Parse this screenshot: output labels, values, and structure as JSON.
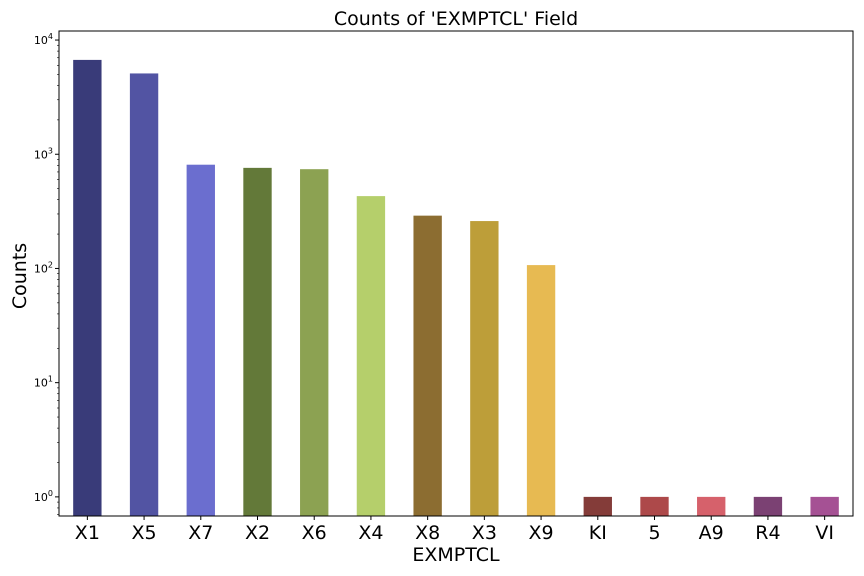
{
  "chart_data": {
    "type": "bar",
    "title": "Counts of 'EXMPTCL' Field",
    "xlabel": "EXMPTCL",
    "ylabel": "Counts",
    "yscale": "log",
    "ylim": [
      0.68,
      12000
    ],
    "yticks": [
      {
        "base": "10",
        "exp": "0",
        "value": 1
      },
      {
        "base": "10",
        "exp": "1",
        "value": 10
      },
      {
        "base": "10",
        "exp": "2",
        "value": 100
      },
      {
        "base": "10",
        "exp": "3",
        "value": 1000
      },
      {
        "base": "10",
        "exp": "4",
        "value": 10000
      }
    ],
    "categories": [
      "X1",
      "X5",
      "X7",
      "X2",
      "X6",
      "X4",
      "X8",
      "X3",
      "X9",
      "KI",
      "5",
      "A9",
      "R4",
      "VI"
    ],
    "values": [
      6700,
      5100,
      810,
      760,
      740,
      430,
      290,
      260,
      107,
      1,
      1,
      1,
      1,
      1
    ],
    "colors": [
      "#393b79",
      "#5254a3",
      "#6b6ecf",
      "#637939",
      "#8ca252",
      "#b5cf6b",
      "#8c6d31",
      "#bd9e39",
      "#e7ba52",
      "#843c39",
      "#ad494a",
      "#d6616b",
      "#7b4173",
      "#a55194"
    ],
    "grid": false,
    "legend": "none"
  }
}
